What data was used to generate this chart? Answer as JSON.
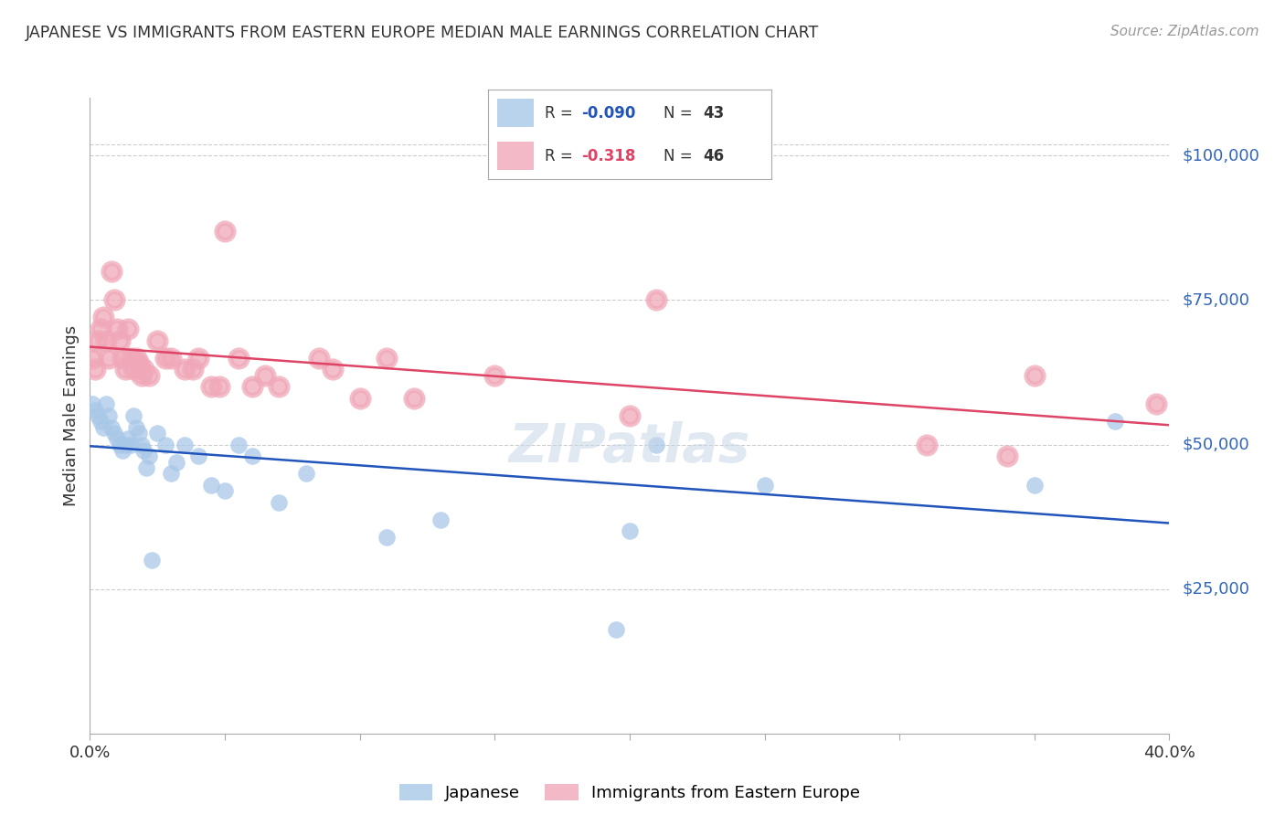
{
  "title": "JAPANESE VS IMMIGRANTS FROM EASTERN EUROPE MEDIAN MALE EARNINGS CORRELATION CHART",
  "source": "Source: ZipAtlas.com",
  "ylabel": "Median Male Earnings",
  "ytick_labels": [
    "$25,000",
    "$50,000",
    "$75,000",
    "$100,000"
  ],
  "ytick_values": [
    25000,
    50000,
    75000,
    100000
  ],
  "ylim": [
    0,
    110000
  ],
  "xlim": [
    0.0,
    0.4
  ],
  "series1_label": "Japanese",
  "series2_label": "Immigrants from Eastern Europe",
  "series1_color": "#a8c8e8",
  "series2_color": "#f0a8b8",
  "trendline1_color": "#2255bb",
  "trendline2_color": "#dd4466",
  "background_color": "#ffffff",
  "grid_color": "#cccccc",
  "title_color": "#333333",
  "ytick_color": "#3366bb",
  "source_color": "#999999",
  "japanese_x": [
    0.001,
    0.002,
    0.003,
    0.004,
    0.005,
    0.006,
    0.007,
    0.008,
    0.009,
    0.01,
    0.011,
    0.012,
    0.013,
    0.014,
    0.015,
    0.016,
    0.017,
    0.018,
    0.019,
    0.02,
    0.022,
    0.025,
    0.028,
    0.03,
    0.032,
    0.035,
    0.04,
    0.05,
    0.055,
    0.06,
    0.07,
    0.08,
    0.11,
    0.13,
    0.195,
    0.2,
    0.21,
    0.25,
    0.35,
    0.38,
    0.021,
    0.023,
    0.045
  ],
  "japanese_y": [
    57000,
    56000,
    55000,
    54000,
    53000,
    57000,
    55000,
    53000,
    52000,
    51000,
    50000,
    49000,
    50000,
    51000,
    50000,
    55000,
    53000,
    52000,
    50000,
    49000,
    48000,
    52000,
    50000,
    45000,
    47000,
    50000,
    48000,
    42000,
    50000,
    48000,
    40000,
    45000,
    34000,
    37000,
    18000,
    35000,
    50000,
    43000,
    43000,
    54000,
    46000,
    30000,
    43000
  ],
  "eastern_europe_x": [
    0.001,
    0.002,
    0.003,
    0.004,
    0.005,
    0.006,
    0.007,
    0.008,
    0.009,
    0.01,
    0.011,
    0.012,
    0.013,
    0.014,
    0.015,
    0.016,
    0.017,
    0.018,
    0.019,
    0.02,
    0.022,
    0.025,
    0.028,
    0.03,
    0.035,
    0.038,
    0.04,
    0.045,
    0.05,
    0.055,
    0.06,
    0.065,
    0.07,
    0.09,
    0.1,
    0.11,
    0.12,
    0.15,
    0.2,
    0.21,
    0.31,
    0.34,
    0.35,
    0.395,
    0.048,
    0.085
  ],
  "eastern_europe_y": [
    65000,
    63000,
    68000,
    70000,
    72000,
    68000,
    65000,
    80000,
    75000,
    70000,
    68000,
    65000,
    63000,
    70000,
    65000,
    63000,
    65000,
    64000,
    62000,
    63000,
    62000,
    68000,
    65000,
    65000,
    63000,
    63000,
    65000,
    60000,
    87000,
    65000,
    60000,
    62000,
    60000,
    63000,
    58000,
    65000,
    58000,
    62000,
    55000,
    75000,
    50000,
    48000,
    62000,
    57000,
    60000,
    65000
  ]
}
